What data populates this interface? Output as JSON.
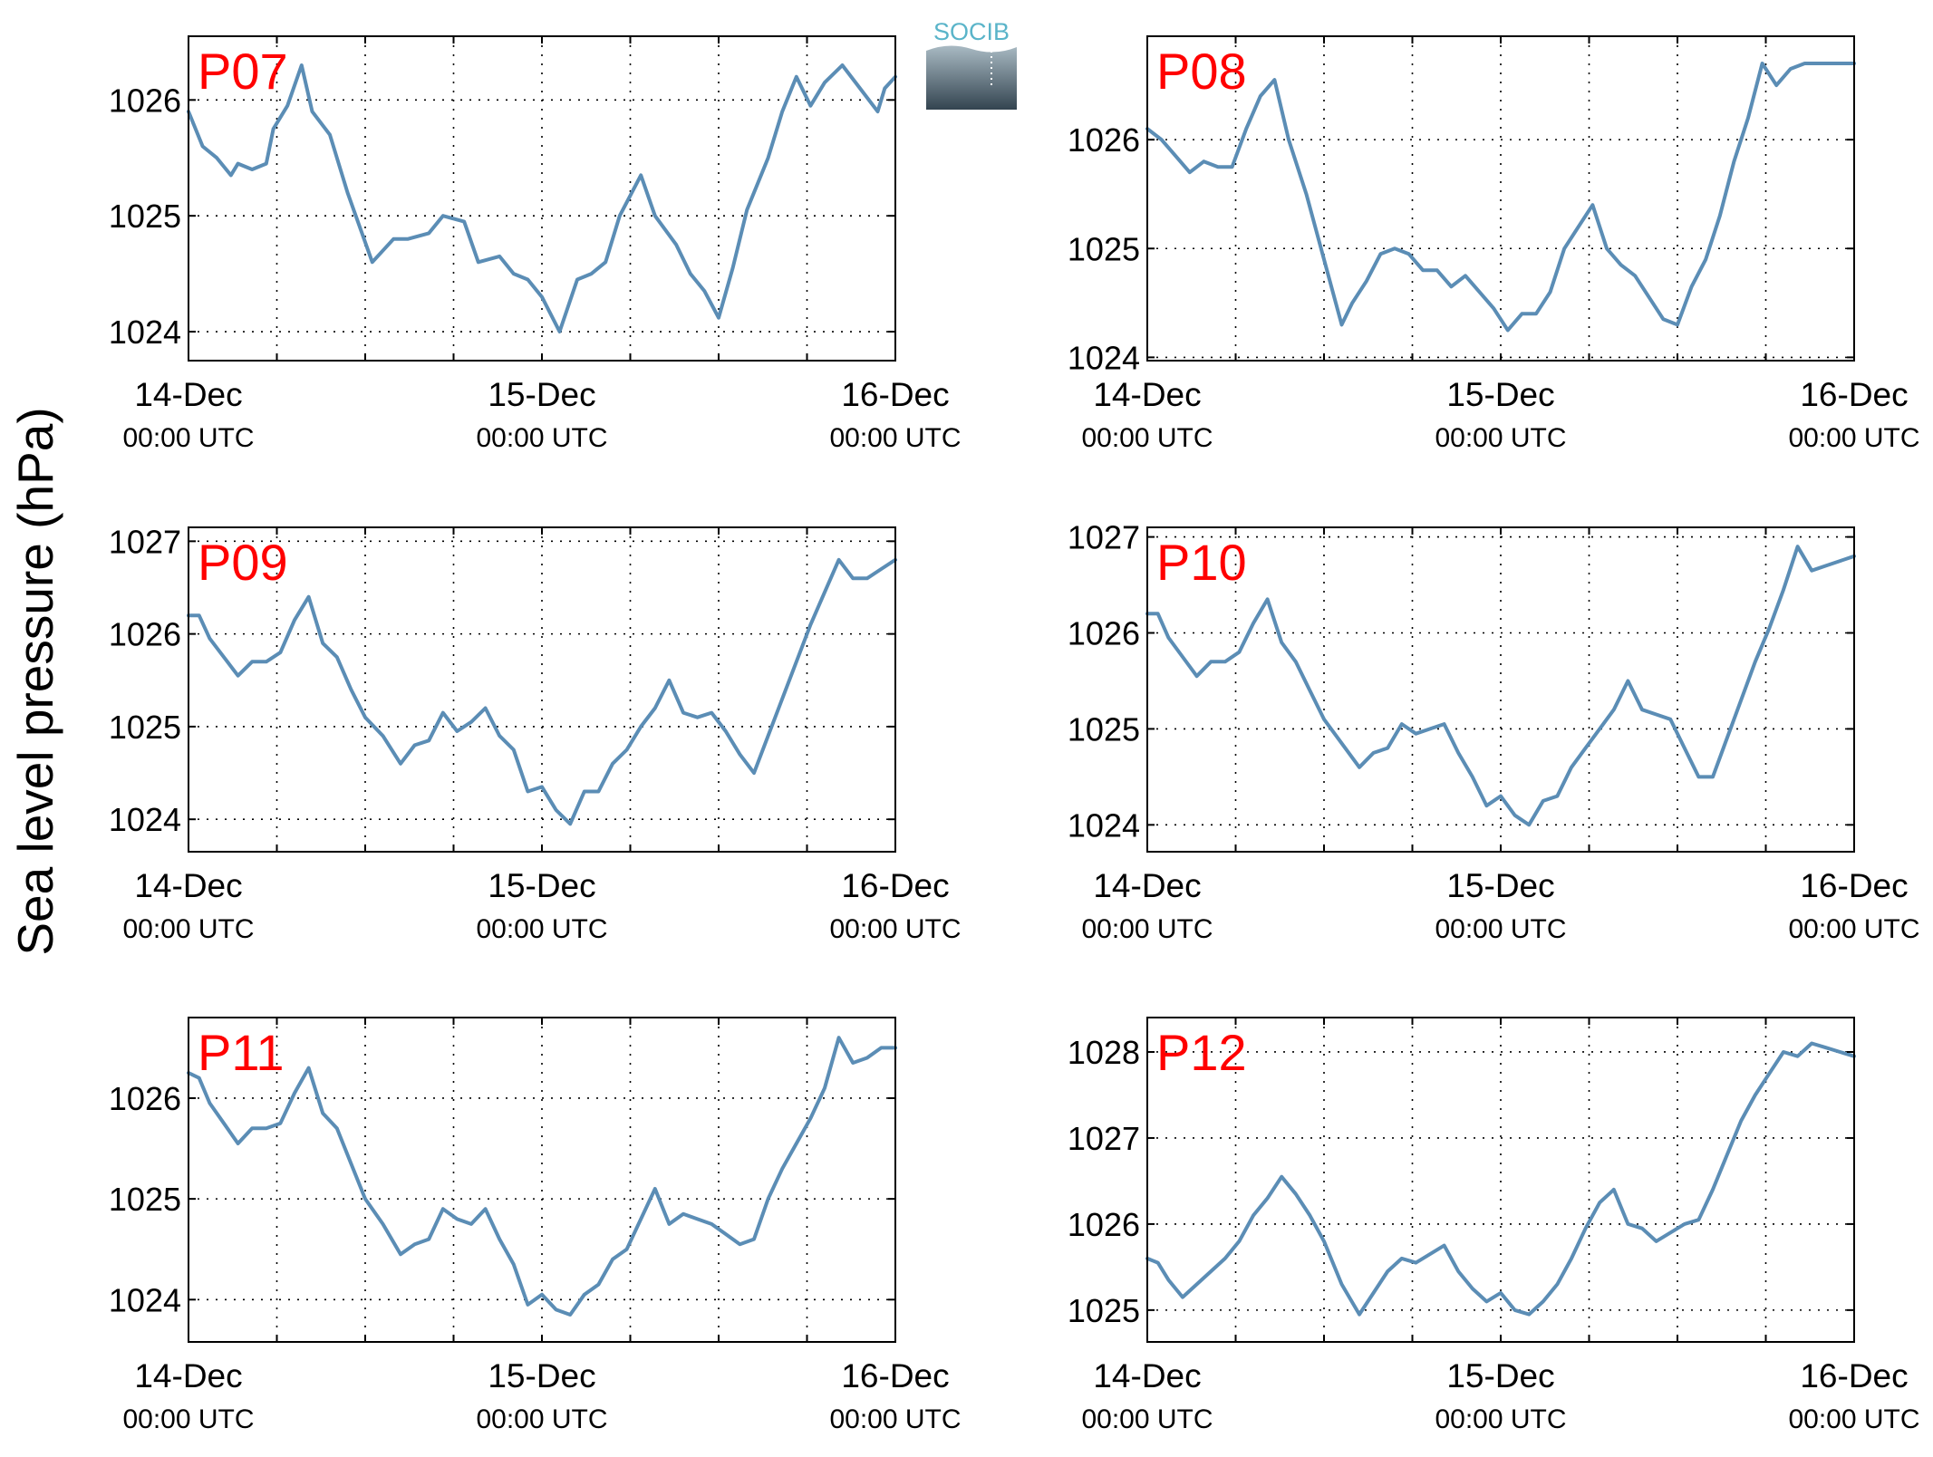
{
  "ylabel": "Sea level pressure (hPa)",
  "logo": {
    "text": "SOCIB",
    "text_color": "#5ab4c9",
    "gradient_top": "#a9bac3",
    "gradient_bottom": "#334450"
  },
  "colors": {
    "line": "#5b8db5",
    "panel_label": "#ff0000",
    "axis": "#000000",
    "grid": "#000000"
  },
  "x_axis": {
    "range_days": [
      0,
      2
    ],
    "ticks": [
      {
        "pos": 0,
        "date": "14-Dec",
        "time": "00:00 UTC"
      },
      {
        "pos": 1,
        "date": "15-Dec",
        "time": "00:00 UTC"
      },
      {
        "pos": 2,
        "date": "16-Dec",
        "time": "00:00 UTC"
      }
    ],
    "grid_step_days": 0.25
  },
  "chart_data": [
    {
      "type": "line",
      "title": "P07",
      "ylim": [
        1023.75,
        1026.55
      ],
      "yticks": [
        1024,
        1025,
        1026
      ],
      "grid": true,
      "x": [
        0,
        0.04,
        0.08,
        0.12,
        0.14,
        0.18,
        0.22,
        0.24,
        0.28,
        0.32,
        0.35,
        0.4,
        0.45,
        0.52,
        0.58,
        0.62,
        0.68,
        0.72,
        0.78,
        0.82,
        0.88,
        0.92,
        0.96,
        1.0,
        1.05,
        1.1,
        1.14,
        1.18,
        1.22,
        1.28,
        1.32,
        1.38,
        1.42,
        1.46,
        1.5,
        1.54,
        1.58,
        1.64,
        1.68,
        1.72,
        1.76,
        1.8,
        1.85,
        1.9,
        1.95,
        1.97,
        2.0
      ],
      "values": [
        1025.9,
        1025.6,
        1025.5,
        1025.35,
        1025.45,
        1025.4,
        1025.45,
        1025.75,
        1025.95,
        1026.3,
        1025.9,
        1025.7,
        1025.2,
        1024.6,
        1024.8,
        1024.8,
        1024.85,
        1025.0,
        1024.95,
        1024.6,
        1024.65,
        1024.5,
        1024.45,
        1024.3,
        1024.0,
        1024.45,
        1024.5,
        1024.6,
        1025.0,
        1025.35,
        1025.0,
        1024.75,
        1024.5,
        1024.35,
        1024.12,
        1024.55,
        1025.05,
        1025.5,
        1025.9,
        1026.2,
        1025.95,
        1026.15,
        1026.3,
        1026.1,
        1025.9,
        1026.1,
        1026.2
      ]
    },
    {
      "type": "line",
      "title": "P08",
      "ylim": [
        1023.97,
        1026.95
      ],
      "yticks": [
        1024,
        1025,
        1026
      ],
      "grid": true,
      "x": [
        0,
        0.04,
        0.08,
        0.12,
        0.16,
        0.2,
        0.24,
        0.28,
        0.32,
        0.36,
        0.4,
        0.45,
        0.5,
        0.55,
        0.58,
        0.62,
        0.66,
        0.7,
        0.74,
        0.78,
        0.82,
        0.86,
        0.9,
        0.94,
        0.98,
        1.02,
        1.06,
        1.1,
        1.14,
        1.18,
        1.22,
        1.26,
        1.3,
        1.34,
        1.38,
        1.42,
        1.46,
        1.5,
        1.54,
        1.58,
        1.62,
        1.66,
        1.7,
        1.74,
        1.78,
        1.82,
        1.86,
        1.9,
        1.94,
        2.0
      ],
      "values": [
        1026.1,
        1026.0,
        1025.85,
        1025.7,
        1025.8,
        1025.75,
        1025.75,
        1026.1,
        1026.4,
        1026.55,
        1026.0,
        1025.5,
        1024.9,
        1024.3,
        1024.5,
        1024.7,
        1024.95,
        1025.0,
        1024.95,
        1024.8,
        1024.8,
        1024.65,
        1024.75,
        1024.6,
        1024.45,
        1024.25,
        1024.4,
        1024.4,
        1024.6,
        1025.0,
        1025.2,
        1025.4,
        1025.0,
        1024.85,
        1024.75,
        1024.55,
        1024.35,
        1024.3,
        1024.65,
        1024.9,
        1025.3,
        1025.8,
        1026.2,
        1026.7,
        1026.5,
        1026.65,
        1026.7,
        1026.7,
        1026.7,
        1026.7
      ]
    },
    {
      "type": "line",
      "title": "P09",
      "ylim": [
        1023.65,
        1027.15
      ],
      "yticks": [
        1024,
        1025,
        1026,
        1027
      ],
      "grid": true,
      "x": [
        0,
        0.03,
        0.06,
        0.1,
        0.14,
        0.18,
        0.22,
        0.26,
        0.3,
        0.34,
        0.38,
        0.42,
        0.46,
        0.5,
        0.55,
        0.6,
        0.64,
        0.68,
        0.72,
        0.76,
        0.8,
        0.84,
        0.88,
        0.92,
        0.96,
        1.0,
        1.04,
        1.08,
        1.12,
        1.16,
        1.2,
        1.24,
        1.28,
        1.32,
        1.36,
        1.4,
        1.44,
        1.48,
        1.52,
        1.56,
        1.6,
        1.64,
        1.68,
        1.72,
        1.76,
        1.8,
        1.84,
        1.88,
        1.92,
        1.96,
        2.0
      ],
      "values": [
        1026.2,
        1026.2,
        1025.95,
        1025.75,
        1025.55,
        1025.7,
        1025.7,
        1025.8,
        1026.15,
        1026.4,
        1025.9,
        1025.75,
        1025.4,
        1025.1,
        1024.9,
        1024.6,
        1024.8,
        1024.85,
        1025.15,
        1024.95,
        1025.05,
        1025.2,
        1024.9,
        1024.75,
        1024.3,
        1024.35,
        1024.1,
        1023.95,
        1024.3,
        1024.3,
        1024.6,
        1024.75,
        1025.0,
        1025.2,
        1025.5,
        1025.15,
        1025.1,
        1025.15,
        1024.95,
        1024.7,
        1024.5,
        1024.9,
        1025.3,
        1025.7,
        1026.1,
        1026.45,
        1026.8,
        1026.6,
        1026.6,
        1026.7,
        1026.8
      ]
    },
    {
      "type": "line",
      "title": "P10",
      "ylim": [
        1023.72,
        1027.1
      ],
      "yticks": [
        1024,
        1025,
        1026,
        1027
      ],
      "grid": true,
      "x": [
        0,
        0.03,
        0.06,
        0.1,
        0.14,
        0.18,
        0.22,
        0.26,
        0.3,
        0.34,
        0.38,
        0.42,
        0.46,
        0.5,
        0.55,
        0.6,
        0.64,
        0.68,
        0.72,
        0.76,
        0.8,
        0.84,
        0.88,
        0.92,
        0.96,
        1.0,
        1.04,
        1.08,
        1.12,
        1.16,
        1.2,
        1.24,
        1.28,
        1.32,
        1.36,
        1.4,
        1.44,
        1.48,
        1.52,
        1.56,
        1.6,
        1.64,
        1.68,
        1.72,
        1.76,
        1.8,
        1.84,
        1.88,
        1.92,
        1.96,
        2.0
      ],
      "values": [
        1026.2,
        1026.2,
        1025.95,
        1025.75,
        1025.55,
        1025.7,
        1025.7,
        1025.8,
        1026.1,
        1026.35,
        1025.9,
        1025.7,
        1025.4,
        1025.1,
        1024.85,
        1024.6,
        1024.75,
        1024.8,
        1025.05,
        1024.95,
        1025.0,
        1025.05,
        1024.75,
        1024.5,
        1024.2,
        1024.3,
        1024.1,
        1024.0,
        1024.25,
        1024.3,
        1024.6,
        1024.8,
        1025.0,
        1025.2,
        1025.5,
        1025.2,
        1025.15,
        1025.1,
        1024.8,
        1024.5,
        1024.5,
        1024.9,
        1025.3,
        1025.7,
        1026.05,
        1026.45,
        1026.9,
        1026.65,
        1026.7,
        1026.75,
        1026.8
      ]
    },
    {
      "type": "line",
      "title": "P11",
      "ylim": [
        1023.58,
        1026.8
      ],
      "yticks": [
        1024,
        1025,
        1026
      ],
      "grid": true,
      "x": [
        0,
        0.03,
        0.06,
        0.1,
        0.14,
        0.18,
        0.22,
        0.26,
        0.3,
        0.34,
        0.38,
        0.42,
        0.46,
        0.5,
        0.55,
        0.6,
        0.64,
        0.68,
        0.72,
        0.76,
        0.8,
        0.84,
        0.88,
        0.92,
        0.96,
        1.0,
        1.04,
        1.08,
        1.12,
        1.16,
        1.2,
        1.24,
        1.28,
        1.32,
        1.36,
        1.4,
        1.44,
        1.48,
        1.52,
        1.56,
        1.6,
        1.64,
        1.68,
        1.72,
        1.76,
        1.8,
        1.84,
        1.88,
        1.92,
        1.96,
        2.0
      ],
      "values": [
        1026.25,
        1026.2,
        1025.95,
        1025.75,
        1025.55,
        1025.7,
        1025.7,
        1025.75,
        1026.05,
        1026.3,
        1025.85,
        1025.7,
        1025.35,
        1025.0,
        1024.75,
        1024.45,
        1024.55,
        1024.6,
        1024.9,
        1024.8,
        1024.75,
        1024.9,
        1024.6,
        1024.35,
        1023.95,
        1024.05,
        1023.9,
        1023.85,
        1024.05,
        1024.15,
        1024.4,
        1024.5,
        1024.8,
        1025.1,
        1024.75,
        1024.85,
        1024.8,
        1024.75,
        1024.65,
        1024.55,
        1024.6,
        1025.0,
        1025.3,
        1025.55,
        1025.8,
        1026.1,
        1026.6,
        1026.35,
        1026.4,
        1026.5,
        1026.5
      ]
    },
    {
      "type": "line",
      "title": "P12",
      "ylim": [
        1024.63,
        1028.4
      ],
      "yticks": [
        1025,
        1026,
        1027,
        1028
      ],
      "grid": true,
      "x": [
        0,
        0.03,
        0.06,
        0.1,
        0.14,
        0.18,
        0.22,
        0.26,
        0.3,
        0.34,
        0.38,
        0.42,
        0.46,
        0.5,
        0.55,
        0.6,
        0.64,
        0.68,
        0.72,
        0.76,
        0.8,
        0.84,
        0.88,
        0.92,
        0.96,
        1.0,
        1.04,
        1.08,
        1.12,
        1.16,
        1.2,
        1.24,
        1.28,
        1.32,
        1.36,
        1.4,
        1.44,
        1.48,
        1.52,
        1.56,
        1.6,
        1.64,
        1.68,
        1.72,
        1.76,
        1.8,
        1.84,
        1.88,
        1.92,
        1.96,
        2.0
      ],
      "values": [
        1025.6,
        1025.55,
        1025.35,
        1025.15,
        1025.3,
        1025.45,
        1025.6,
        1025.8,
        1026.1,
        1026.3,
        1026.55,
        1026.35,
        1026.1,
        1025.8,
        1025.3,
        1024.95,
        1025.2,
        1025.45,
        1025.6,
        1025.55,
        1025.65,
        1025.75,
        1025.45,
        1025.25,
        1025.1,
        1025.2,
        1025.0,
        1024.95,
        1025.1,
        1025.3,
        1025.6,
        1025.95,
        1026.25,
        1026.4,
        1026.0,
        1025.95,
        1025.8,
        1025.9,
        1026.0,
        1026.05,
        1026.4,
        1026.8,
        1027.2,
        1027.5,
        1027.75,
        1028.0,
        1027.95,
        1028.1,
        1028.05,
        1028.0,
        1027.95
      ]
    }
  ]
}
